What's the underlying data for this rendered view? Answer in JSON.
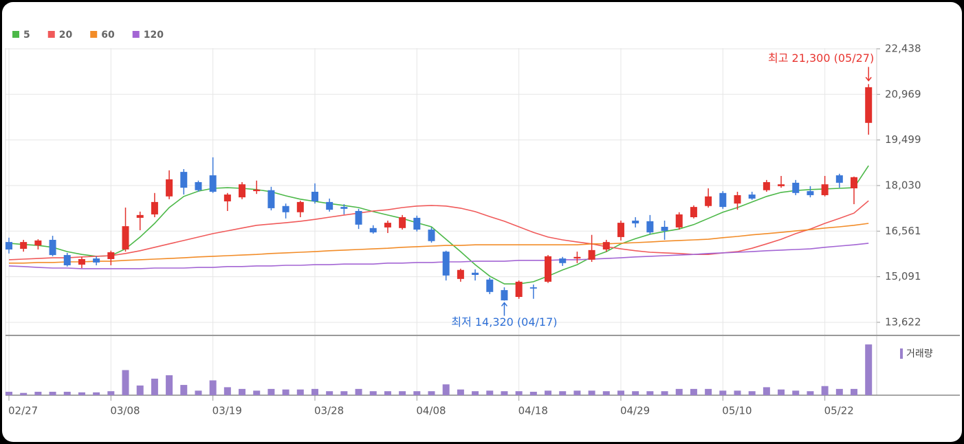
{
  "chart_data": [
    {
      "type": "candlestick",
      "categories": [
        "02/27",
        null,
        null,
        null,
        null,
        null,
        null,
        "03/08",
        null,
        null,
        null,
        null,
        null,
        null,
        "03/19",
        null,
        null,
        null,
        null,
        null,
        null,
        "03/28",
        null,
        null,
        null,
        null,
        null,
        null,
        "04/08",
        null,
        null,
        null,
        null,
        null,
        null,
        "04/18",
        null,
        null,
        null,
        null,
        null,
        null,
        "04/29",
        null,
        null,
        null,
        null,
        null,
        null,
        "05/10",
        null,
        null,
        null,
        null,
        null,
        null,
        "05/22",
        null,
        null,
        null
      ],
      "open": [
        16210,
        15990,
        16100,
        16280,
        15790,
        15480,
        15680,
        15660,
        15970,
        16990,
        17100,
        17680,
        18470,
        18140,
        18360,
        17520,
        17650,
        17850,
        17880,
        17370,
        17170,
        17830,
        17500,
        17340,
        17210,
        16660,
        16680,
        16660,
        16990,
        16610,
        15900,
        15020,
        15220,
        15000,
        14660,
        14440,
        14750,
        14930,
        15680,
        15680,
        15640,
        15970,
        16370,
        16900,
        16880,
        16700,
        16680,
        17010,
        17370,
        17790,
        17450,
        17740,
        17880,
        18010,
        18120,
        17850,
        17720,
        18360,
        17940,
        20050
      ],
      "high": [
        16350,
        16280,
        16300,
        16410,
        15860,
        15730,
        15750,
        15930,
        17320,
        17190,
        17790,
        18520,
        18560,
        18190,
        18940,
        17790,
        18140,
        18190,
        17990,
        17450,
        17540,
        18100,
        17610,
        17430,
        17280,
        16750,
        16900,
        17080,
        17060,
        16680,
        15930,
        15350,
        15330,
        15060,
        14750,
        14970,
        14840,
        15790,
        15730,
        15900,
        16440,
        16280,
        16900,
        17010,
        17080,
        16900,
        17170,
        17390,
        17940,
        17850,
        17830,
        17830,
        18210,
        18340,
        18210,
        18010,
        18340,
        18410,
        18320,
        21300
      ],
      "low": [
        15840,
        15900,
        15970,
        15750,
        15420,
        15370,
        15460,
        15460,
        15900,
        16590,
        17010,
        17590,
        17740,
        17830,
        17790,
        17210,
        17590,
        17760,
        17230,
        16970,
        17010,
        17450,
        17190,
        17100,
        16630,
        16480,
        16500,
        16610,
        16550,
        16190,
        14970,
        14930,
        14970,
        14530,
        14320,
        14380,
        14380,
        14890,
        15440,
        15530,
        15570,
        15900,
        16260,
        16680,
        16460,
        16280,
        16610,
        16970,
        17320,
        17280,
        17250,
        17570,
        17830,
        17960,
        17720,
        17650,
        17680,
        17960,
        17430,
        19670
      ],
      "close": [
        15970,
        16210,
        16260,
        15790,
        15460,
        15660,
        15550,
        15880,
        16720,
        17080,
        17500,
        18230,
        17960,
        17880,
        17830,
        17740,
        18070,
        17900,
        17300,
        17170,
        17500,
        17520,
        17250,
        17280,
        16770,
        16520,
        16830,
        17010,
        16610,
        16240,
        15130,
        15310,
        15150,
        14600,
        14330,
        14930,
        14710,
        15750,
        15530,
        15730,
        15950,
        16210,
        16830,
        16810,
        16520,
        16570,
        17100,
        17340,
        17680,
        17340,
        17720,
        17610,
        18140,
        18070,
        17790,
        17720,
        18070,
        18120,
        18300,
        21200
      ],
      "up_color": "#e2302b",
      "down_color": "#3b78d8",
      "series": [
        {
          "name": "5",
          "color": "#4cb848",
          "values": [
            16170,
            16130,
            16100,
            16040,
            15900,
            15810,
            15750,
            15770,
            15990,
            16370,
            16810,
            17320,
            17680,
            17850,
            17940,
            17960,
            17940,
            17900,
            17830,
            17700,
            17590,
            17520,
            17450,
            17390,
            17320,
            17190,
            17080,
            16970,
            16830,
            16700,
            16300,
            15900,
            15480,
            15110,
            14860,
            14860,
            14930,
            15110,
            15310,
            15480,
            15730,
            15900,
            16150,
            16320,
            16460,
            16550,
            16630,
            16770,
            16970,
            17170,
            17320,
            17500,
            17680,
            17810,
            17870,
            17900,
            17920,
            17940,
            17960,
            18670
          ]
        },
        {
          "name": "20",
          "color": "#f05a5a",
          "values": [
            15640,
            15660,
            15680,
            15700,
            15700,
            15730,
            15750,
            15770,
            15840,
            15930,
            16040,
            16150,
            16260,
            16370,
            16480,
            16570,
            16660,
            16750,
            16790,
            16830,
            16880,
            16940,
            17010,
            17080,
            17140,
            17210,
            17250,
            17320,
            17370,
            17390,
            17370,
            17300,
            17190,
            17030,
            16880,
            16700,
            16520,
            16370,
            16280,
            16210,
            16150,
            16060,
            15990,
            15930,
            15880,
            15860,
            15840,
            15810,
            15810,
            15860,
            15900,
            16010,
            16150,
            16300,
            16480,
            16630,
            16810,
            16970,
            17140,
            17540
          ]
        },
        {
          "name": "60",
          "color": "#f28c28",
          "values": [
            15530,
            15530,
            15550,
            15550,
            15570,
            15570,
            15590,
            15590,
            15620,
            15640,
            15660,
            15680,
            15700,
            15730,
            15750,
            15770,
            15790,
            15810,
            15840,
            15860,
            15880,
            15900,
            15930,
            15950,
            15970,
            15990,
            16010,
            16040,
            16060,
            16080,
            16100,
            16100,
            16120,
            16120,
            16120,
            16120,
            16120,
            16120,
            16120,
            16120,
            16150,
            16150,
            16170,
            16190,
            16210,
            16240,
            16260,
            16280,
            16300,
            16350,
            16390,
            16440,
            16480,
            16520,
            16570,
            16610,
            16660,
            16700,
            16750,
            16810
          ]
        },
        {
          "name": "120",
          "color": "#a365d4",
          "values": [
            15440,
            15420,
            15390,
            15370,
            15370,
            15350,
            15350,
            15350,
            15350,
            15350,
            15370,
            15370,
            15370,
            15390,
            15390,
            15420,
            15420,
            15440,
            15440,
            15460,
            15460,
            15480,
            15480,
            15500,
            15500,
            15500,
            15530,
            15530,
            15550,
            15550,
            15570,
            15570,
            15590,
            15590,
            15590,
            15620,
            15620,
            15620,
            15640,
            15640,
            15660,
            15680,
            15700,
            15730,
            15750,
            15770,
            15790,
            15810,
            15840,
            15860,
            15880,
            15900,
            15930,
            15950,
            15970,
            15990,
            16040,
            16080,
            16120,
            16170
          ]
        }
      ],
      "ylim": [
        13200,
        22460
      ],
      "yticks": [
        {
          "value": 13622,
          "label": "13,622"
        },
        {
          "value": 15091,
          "label": "15,091"
        },
        {
          "value": 16561,
          "label": "16,561"
        },
        {
          "value": 18030,
          "label": "18,030"
        },
        {
          "value": 19499,
          "label": "19,499"
        },
        {
          "value": 20969,
          "label": "20,969"
        },
        {
          "value": 22438,
          "label": "22,438"
        }
      ],
      "grid": true,
      "legend": "top-left",
      "annotations": {
        "high": {
          "text": "최고 21,300 (05/27)",
          "color": "#e83530"
        },
        "low": {
          "text": "최저 14,320 (04/17)",
          "color": "#2f70d6"
        }
      }
    },
    {
      "type": "bar",
      "series": [
        {
          "name": "거래량",
          "color": "#9a80cc",
          "values": [
            6,
            4,
            6,
            6,
            6,
            5,
            5,
            7,
            44,
            17,
            29,
            35,
            18,
            8,
            26,
            14,
            11,
            8,
            11,
            10,
            10,
            11,
            7,
            7,
            11,
            7,
            7,
            7,
            7,
            7,
            19,
            10,
            7,
            8,
            7,
            7,
            6,
            8,
            7,
            8,
            8,
            7,
            8,
            7,
            7,
            7,
            11,
            11,
            11,
            8,
            8,
            7,
            14,
            10,
            8,
            7,
            16,
            11,
            11,
            89
          ]
        }
      ],
      "ylim": [
        0,
        100
      ]
    }
  ]
}
